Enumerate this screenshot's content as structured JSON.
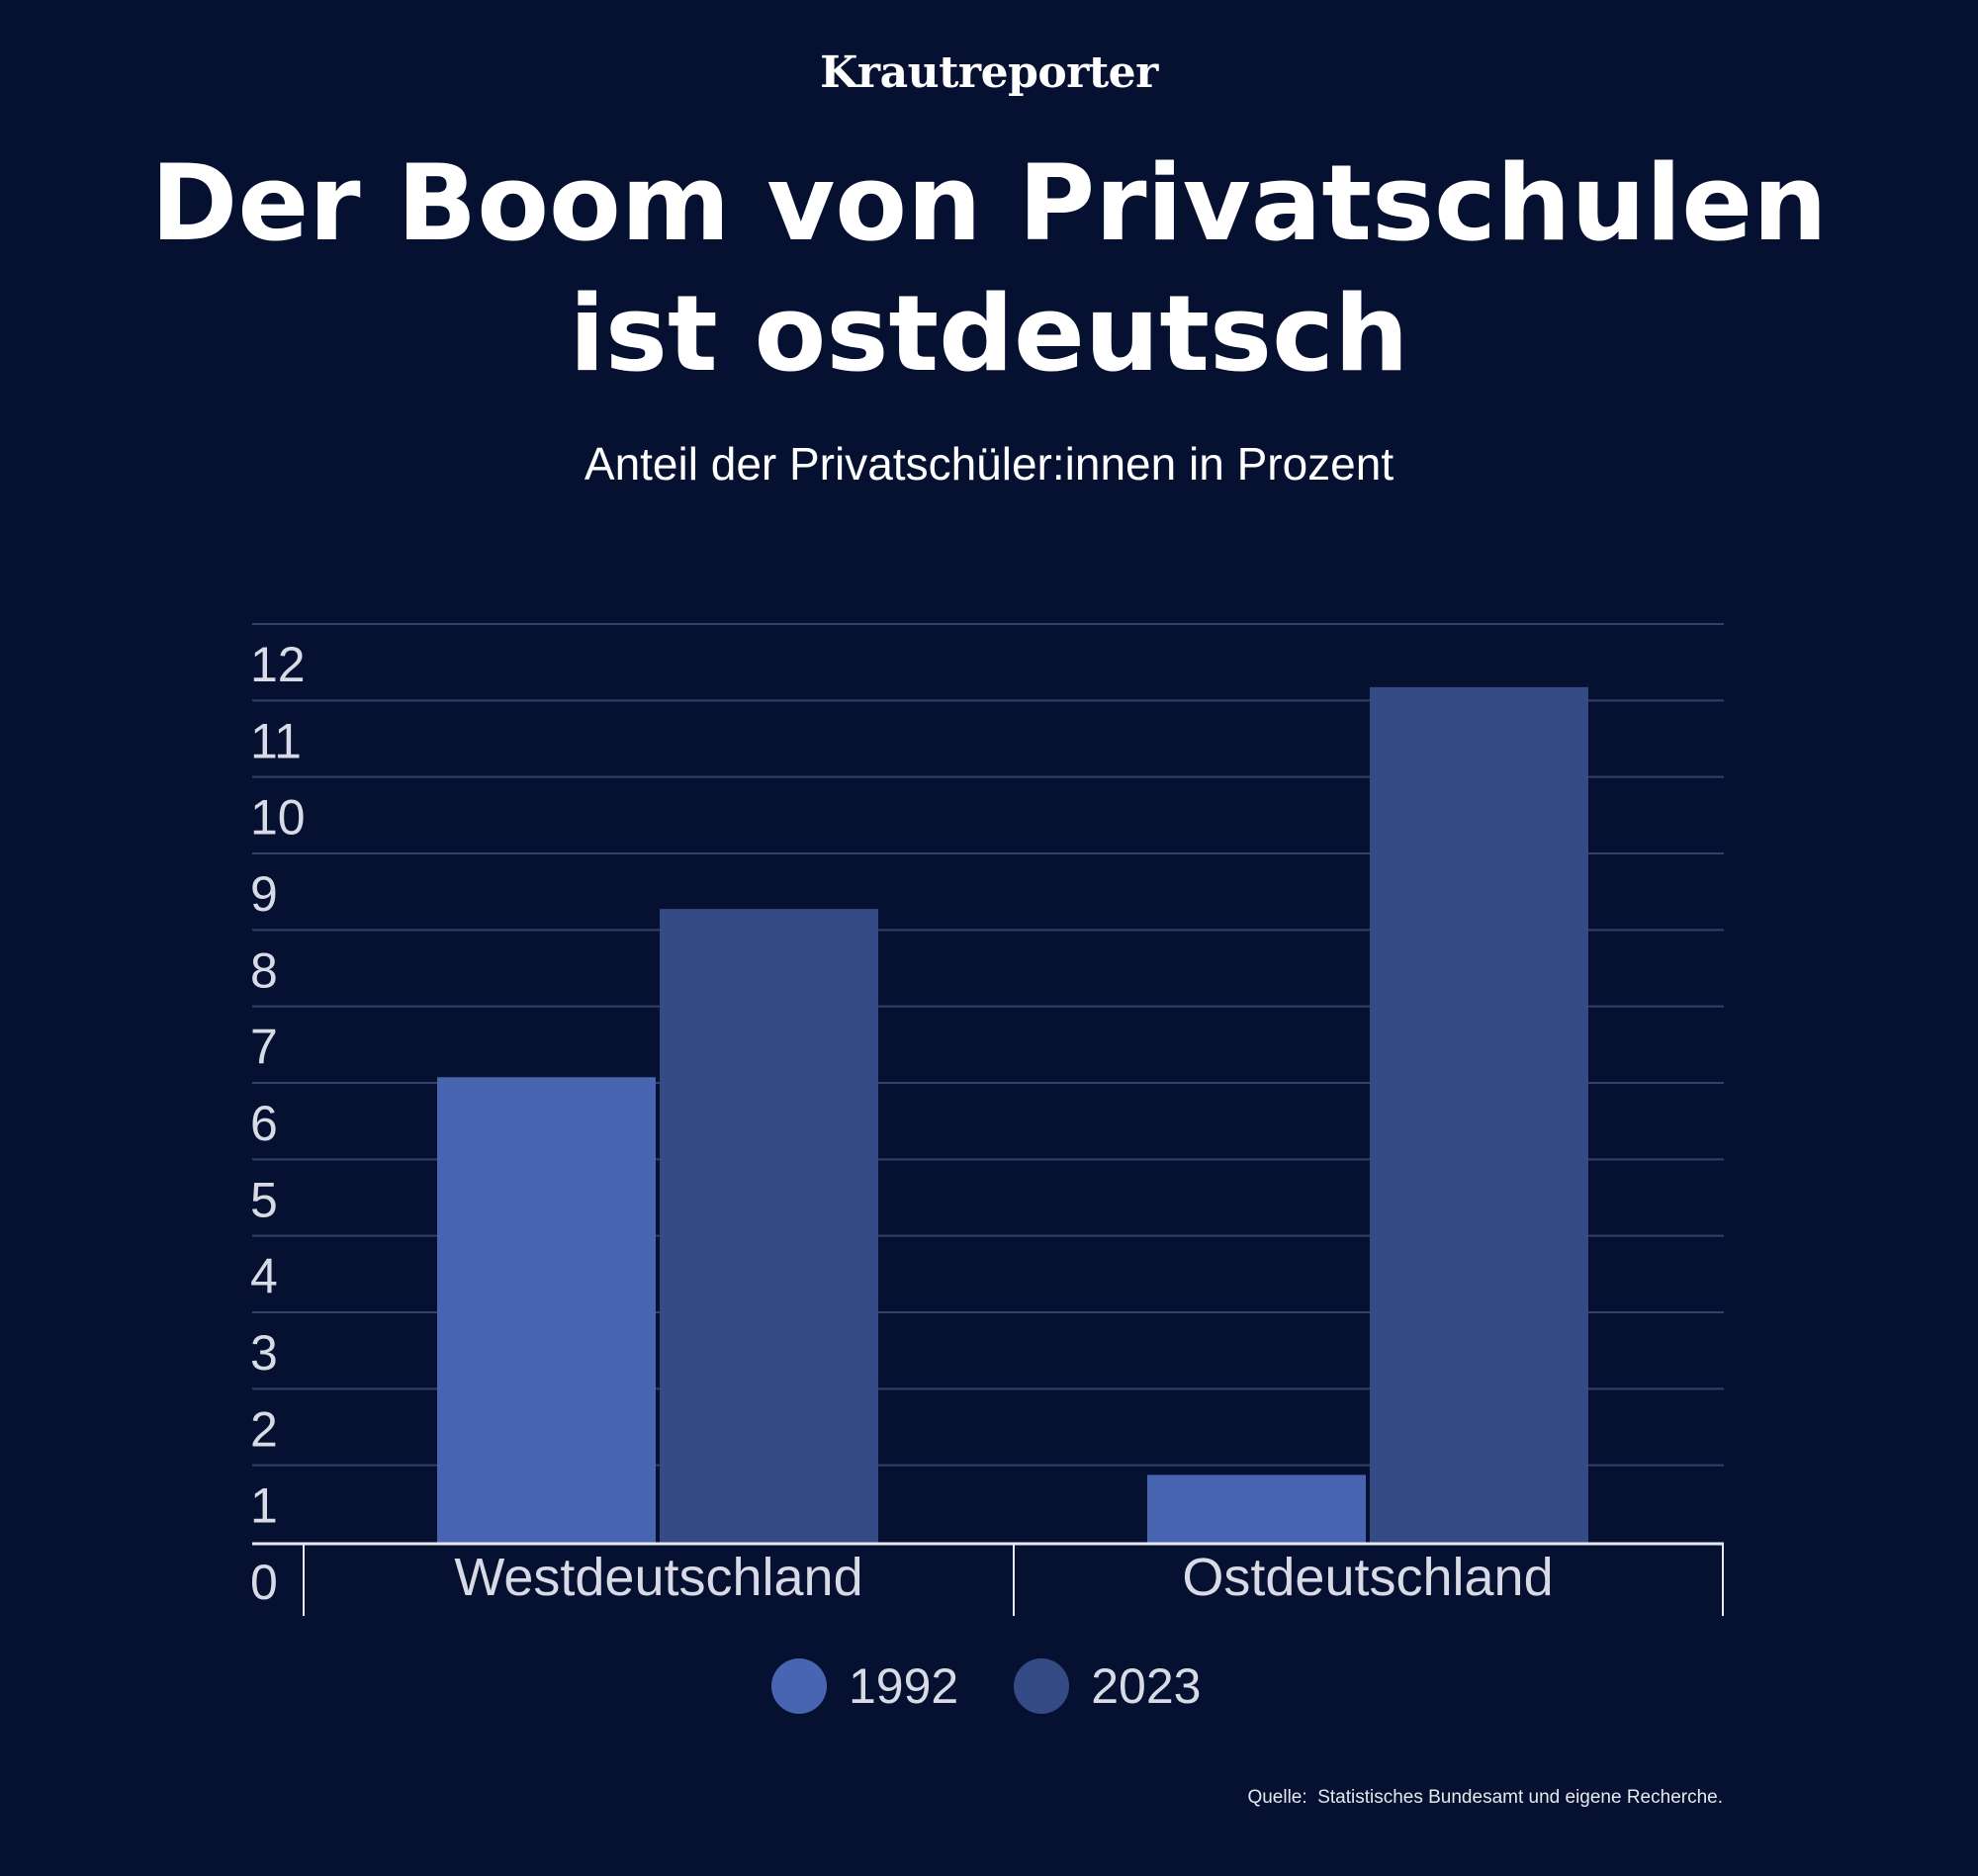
{
  "brand": "Krautreporter",
  "title": "Der Boom von Privatschulen ist ostdeutsch",
  "subtitle": "Anteil der Privatschüler:innen in Prozent",
  "source": "Quelle:  Statistisches Bundesamt und eigene Recherche.",
  "colors": {
    "background": "#061132",
    "series_1992": "#4865B1",
    "series_2023": "#354B85",
    "grid": "#36406a",
    "axis": "#e6e8f0"
  },
  "chart_data": {
    "type": "bar",
    "title": "Der Boom von Privatschulen ist ostdeutsch",
    "subtitle": "Anteil der Privatschüler:innen in Prozent",
    "categories": [
      "Westdeutschland",
      "Ostdeutschland"
    ],
    "series": [
      {
        "name": "1992",
        "values": [
          6.1,
          0.9
        ]
      },
      {
        "name": "2023",
        "values": [
          8.3,
          11.2
        ]
      }
    ],
    "ylim": [
      0,
      12
    ],
    "yticks": [
      0,
      1,
      2,
      3,
      4,
      5,
      6,
      7,
      8,
      9,
      10,
      11,
      12
    ],
    "grid": true,
    "legend_position": "bottom-center"
  }
}
